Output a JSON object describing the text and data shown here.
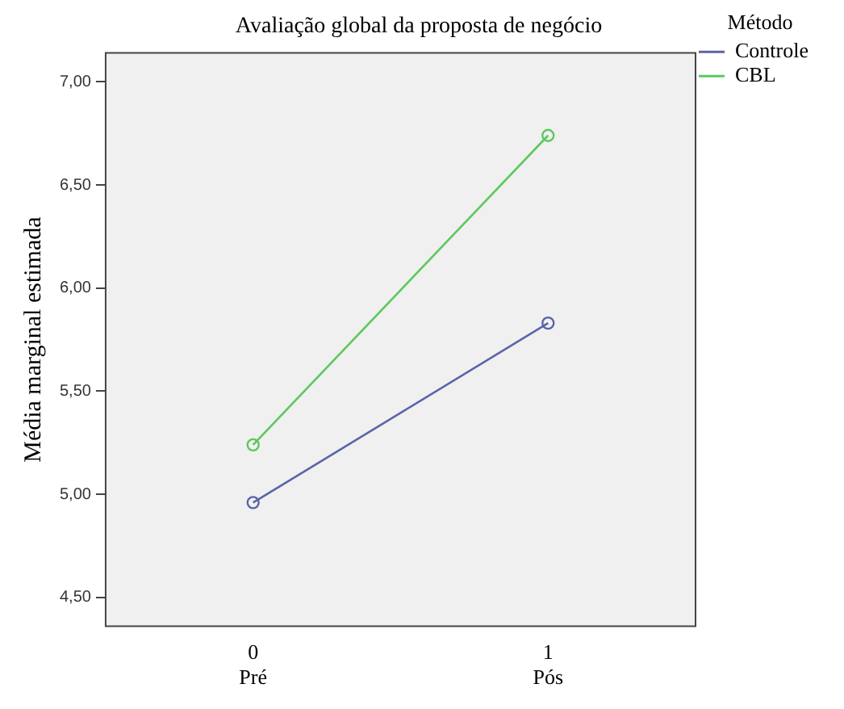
{
  "chart_data": {
    "type": "line",
    "title": "Avaliação global da proposta de negócio",
    "ylabel": "Média marginal estimada",
    "legend_title": "Método",
    "categories": [
      "0\nPré",
      "1\nPós"
    ],
    "series": [
      {
        "name": "Controle",
        "color": "#5b64a8",
        "values": [
          4.96,
          5.83
        ]
      },
      {
        "name": "CBL",
        "color": "#5cc85c",
        "values": [
          5.24,
          6.74
        ]
      }
    ],
    "ylim": [
      4.36,
      7.14
    ],
    "yticks": [
      {
        "value": 4.5,
        "label": "4,50"
      },
      {
        "value": 5,
        "label": "5,00"
      },
      {
        "value": 5.5,
        "label": "5,50"
      },
      {
        "value": 6,
        "label": "6,00"
      },
      {
        "value": 6.5,
        "label": "6,50"
      },
      {
        "value": 7,
        "label": "7,00"
      }
    ],
    "grid": false,
    "legend": "top right",
    "marker": "circle",
    "line_style": "solid"
  }
}
